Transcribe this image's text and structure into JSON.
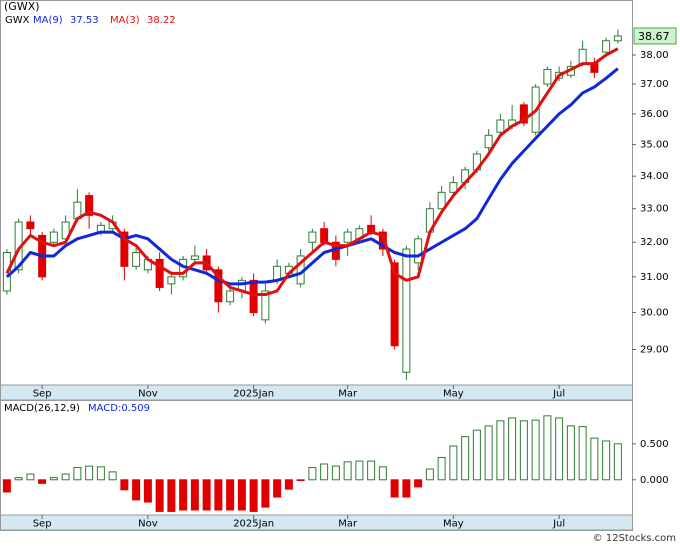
{
  "chart_data": [
    {
      "type": "candlestick",
      "title": "(GWX)",
      "symbol": "GWX",
      "log_scale": true,
      "grid": false,
      "up_color": "#2e7d32",
      "down_color": "#e00000",
      "categories": [
        null,
        null,
        null,
        "Sep",
        null,
        null,
        null,
        null,
        null,
        null,
        null,
        null,
        "Nov",
        null,
        null,
        null,
        null,
        null,
        null,
        null,
        null,
        "2025Jan",
        null,
        null,
        null,
        null,
        null,
        null,
        null,
        "Mar",
        null,
        null,
        null,
        null,
        null,
        null,
        null,
        null,
        "May",
        null,
        null,
        null,
        null,
        null,
        null,
        null,
        null,
        "Jul",
        null,
        null,
        null,
        null,
        null
      ],
      "open": [
        30.6,
        31.2,
        32.6,
        32.2,
        32.0,
        32.1,
        32.7,
        33.4,
        32.3,
        32.4,
        32.3,
        31.3,
        31.2,
        31.5,
        30.8,
        31.0,
        31.5,
        31.6,
        31.2,
        30.3,
        30.6,
        30.9,
        29.8,
        30.9,
        31.1,
        30.8,
        32.0,
        32.4,
        32.0,
        32.0,
        32.1,
        32.5,
        32.3,
        31.4,
        28.4,
        31.4,
        32.3,
        33.0,
        33.5,
        33.8,
        34.2,
        34.9,
        35.4,
        35.6,
        36.3,
        35.4,
        37.0,
        37.2,
        37.3,
        37.7,
        37.7,
        38.1,
        38.5
      ],
      "high": [
        31.8,
        32.7,
        32.8,
        32.3,
        32.4,
        32.8,
        33.6,
        33.5,
        32.6,
        32.8,
        32.4,
        31.9,
        31.6,
        31.7,
        31.1,
        31.6,
        31.9,
        31.8,
        31.3,
        30.8,
        31.0,
        31.1,
        30.8,
        31.5,
        31.4,
        31.8,
        32.4,
        32.6,
        32.2,
        32.4,
        32.5,
        32.8,
        32.4,
        31.5,
        31.9,
        32.2,
        33.2,
        33.7,
        34.0,
        34.3,
        34.8,
        35.5,
        36.0,
        36.3,
        36.4,
        37.0,
        37.6,
        37.6,
        37.8,
        38.5,
        37.9,
        38.6,
        38.9
      ],
      "low": [
        30.5,
        31.1,
        32.2,
        30.9,
        31.9,
        32.0,
        32.6,
        32.4,
        32.2,
        32.3,
        30.9,
        31.2,
        31.1,
        30.6,
        30.5,
        30.9,
        31.4,
        31.1,
        30.0,
        30.2,
        30.4,
        29.9,
        29.7,
        30.8,
        31.0,
        30.7,
        31.7,
        31.9,
        31.3,
        31.6,
        32.0,
        32.2,
        31.6,
        29.0,
        28.2,
        31.2,
        32.2,
        32.9,
        33.4,
        33.6,
        34.1,
        34.8,
        35.3,
        35.5,
        35.6,
        35.3,
        36.9,
        37.1,
        37.2,
        37.6,
        37.2,
        38.0,
        38.4
      ],
      "close": [
        31.7,
        32.6,
        32.4,
        31.0,
        32.3,
        32.6,
        33.2,
        32.8,
        32.5,
        32.6,
        31.3,
        31.7,
        31.5,
        30.7,
        31.0,
        31.5,
        31.6,
        31.2,
        30.3,
        30.6,
        30.9,
        30.0,
        30.6,
        31.3,
        31.3,
        31.6,
        32.3,
        32.0,
        31.5,
        32.3,
        32.4,
        32.3,
        31.8,
        29.1,
        31.8,
        32.1,
        33.0,
        33.5,
        33.8,
        34.2,
        34.7,
        35.3,
        35.8,
        35.8,
        35.7,
        36.9,
        37.5,
        37.4,
        37.6,
        38.2,
        37.4,
        38.5,
        38.67
      ],
      "series": [
        {
          "name": "MA(9)",
          "color": "#1028d8",
          "values": [
            31.0,
            31.3,
            31.7,
            31.6,
            31.6,
            31.9,
            32.1,
            32.2,
            32.3,
            32.3,
            32.1,
            32.2,
            32.1,
            31.8,
            31.5,
            31.3,
            31.2,
            31.1,
            30.9,
            30.8,
            30.8,
            30.85,
            30.85,
            30.9,
            31.0,
            31.1,
            31.4,
            31.7,
            31.8,
            31.9,
            32.0,
            32.1,
            31.9,
            31.7,
            31.6,
            31.6,
            31.8,
            32.0,
            32.2,
            32.4,
            32.7,
            33.3,
            33.9,
            34.4,
            34.8,
            35.2,
            35.6,
            36.0,
            36.3,
            36.7,
            36.9,
            37.2,
            37.53
          ]
        },
        {
          "name": "MA(3)",
          "color": "#e01010",
          "values": [
            31.1,
            31.8,
            32.2,
            32.0,
            31.9,
            32.0,
            32.7,
            32.9,
            32.8,
            32.6,
            32.1,
            31.9,
            31.5,
            31.3,
            31.1,
            31.1,
            31.4,
            31.4,
            31.0,
            30.7,
            30.6,
            30.5,
            30.5,
            30.6,
            31.1,
            31.4,
            31.7,
            32.0,
            31.9,
            31.9,
            32.1,
            32.3,
            32.2,
            31.1,
            30.9,
            31.0,
            32.3,
            32.9,
            33.4,
            33.8,
            34.2,
            34.7,
            35.3,
            35.6,
            35.8,
            36.1,
            36.7,
            37.3,
            37.5,
            37.7,
            37.7,
            38.0,
            38.22
          ]
        }
      ],
      "ylim": [
        28.07,
        39.53
      ],
      "yticks": [
        {
          "value": 29,
          "label": "29.00"
        },
        {
          "value": 30,
          "label": "30.00"
        },
        {
          "value": 31,
          "label": "31.00"
        },
        {
          "value": 32,
          "label": "32.00"
        },
        {
          "value": 33,
          "label": "33.00"
        },
        {
          "value": 34,
          "label": "34.00"
        },
        {
          "value": 35,
          "label": "35.00"
        },
        {
          "value": 36,
          "label": "36.00"
        },
        {
          "value": 37,
          "label": "37.00"
        },
        {
          "value": 38,
          "label": "38.00"
        }
      ]
    },
    {
      "type": "bar",
      "title": "MACD(26,12,9)",
      "annotation": "MACD:0.509",
      "grid": false,
      "up_color": "#2e7d32",
      "down_color": "#e00000",
      "categories": [
        null,
        null,
        null,
        "Sep",
        null,
        null,
        null,
        null,
        null,
        null,
        null,
        null,
        "Nov",
        null,
        null,
        null,
        null,
        null,
        null,
        null,
        null,
        "2025Jan",
        null,
        null,
        null,
        null,
        null,
        null,
        null,
        "Mar",
        null,
        null,
        null,
        null,
        null,
        null,
        null,
        null,
        "May",
        null,
        null,
        null,
        null,
        null,
        null,
        null,
        null,
        "Jul",
        null,
        null,
        null,
        null,
        null
      ],
      "values": [
        -0.17,
        0.03,
        0.08,
        -0.05,
        0.03,
        0.08,
        0.17,
        0.19,
        0.18,
        0.11,
        -0.14,
        -0.28,
        -0.31,
        -0.44,
        -0.44,
        -0.42,
        -0.42,
        -0.42,
        -0.42,
        -0.42,
        -0.42,
        -0.44,
        -0.38,
        -0.24,
        -0.13,
        -0.01,
        0.17,
        0.22,
        0.19,
        0.25,
        0.26,
        0.26,
        0.18,
        -0.24,
        -0.24,
        -0.1,
        0.15,
        0.31,
        0.47,
        0.6,
        0.69,
        0.75,
        0.82,
        0.86,
        0.82,
        0.83,
        0.89,
        0.86,
        0.75,
        0.74,
        0.58,
        0.54,
        0.5
      ],
      "ylim": [
        -0.49,
        1.11
      ],
      "yticks": [
        {
          "value": 0,
          "label": "0.000"
        },
        {
          "value": 0.5,
          "label": "0.500"
        }
      ]
    }
  ],
  "credit": "© 12Stocks.com"
}
